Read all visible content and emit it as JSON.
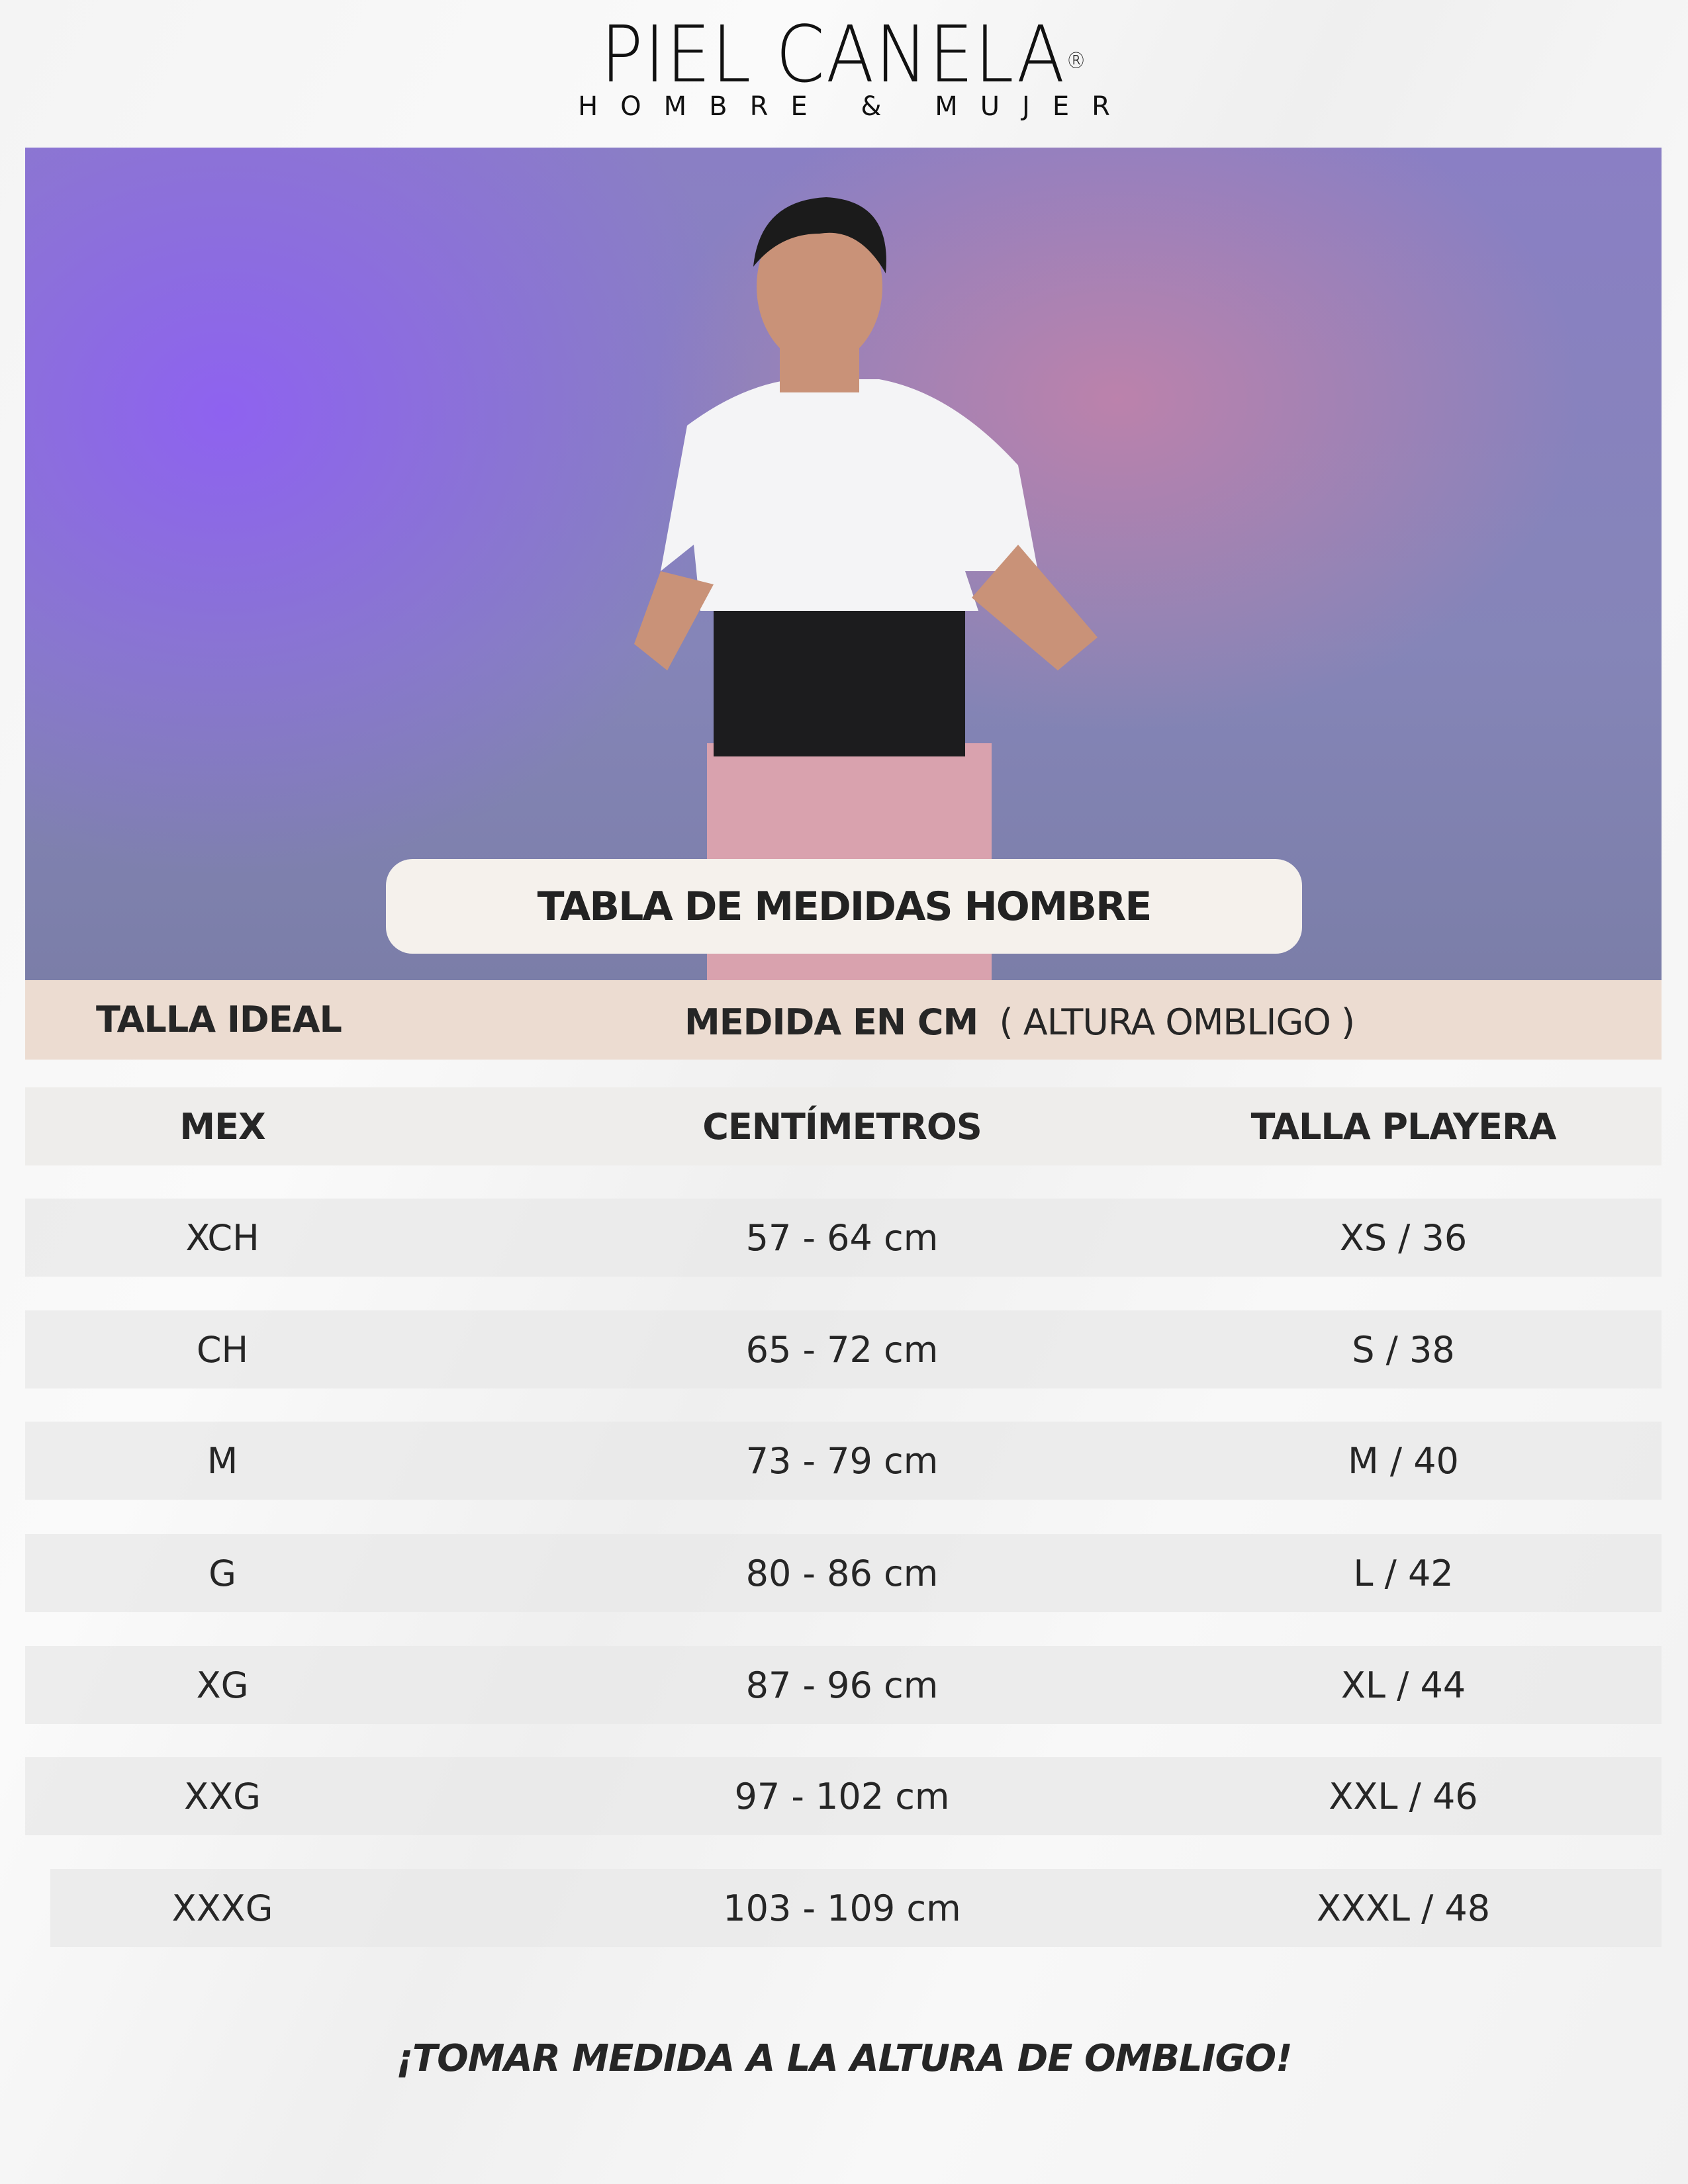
{
  "brand": {
    "name": "PIEL CANELA",
    "registered": "®",
    "tagline": "HOMBRE & MUJER"
  },
  "banner": {
    "title": "TABLA DE MEDIDAS HOMBRE"
  },
  "band": {
    "left": "TALLA IDEAL",
    "right_bold": "MEDIDA EN CM",
    "right_note": "( ALTURA OMBLIGO )"
  },
  "table": {
    "headers": [
      "MEX",
      "CENTÍMETROS",
      "TALLA PLAYERA"
    ],
    "rows": [
      [
        "XCH",
        "57 - 64 cm",
        "XS / 36"
      ],
      [
        "CH",
        "65 - 72 cm",
        "S / 38"
      ],
      [
        "M",
        "73 - 79 cm",
        "M / 40"
      ],
      [
        "G",
        "80 - 86 cm",
        "L  / 42"
      ],
      [
        "XG",
        "87 - 96 cm",
        "XL / 44"
      ],
      [
        "XXG",
        "97 - 102 cm",
        "XXL / 46"
      ],
      [
        "XXXG",
        "103 - 109 cm",
        "XXXL / 48"
      ]
    ]
  },
  "footer": {
    "note": "¡TOMAR MEDIDA A LA ALTURA DE OMBLIGO!"
  },
  "colors": {
    "band": "#ecdcd1",
    "header_row": "#eeedeb",
    "pill": "#f5f1ec",
    "text": "#262626"
  }
}
